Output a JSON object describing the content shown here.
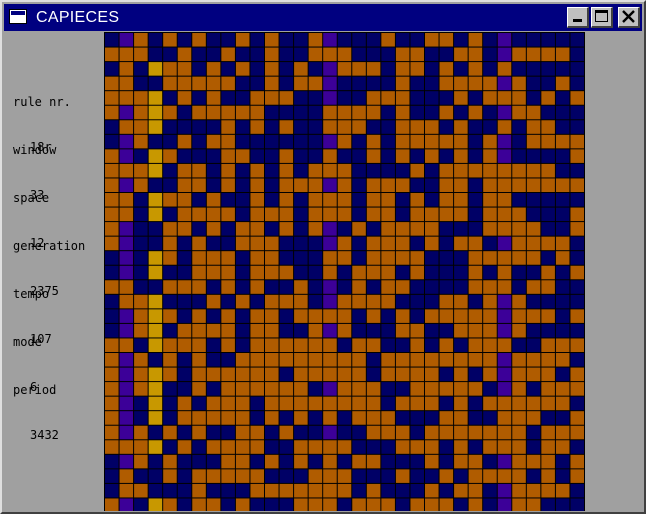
{
  "window": {
    "title": "CAPIECES",
    "controls": [
      "minimize",
      "maximize",
      "close"
    ]
  },
  "info": {
    "rule": {
      "label": "rule nr.",
      "value": "18r"
    },
    "window": {
      "label": "window",
      "value": "33"
    },
    "space": {
      "label": "space",
      "value": "12"
    },
    "generation": {
      "label": "generation",
      "value": "2375"
    },
    "tempo": {
      "label": "tempo",
      "value": "107"
    },
    "mode": {
      "label": "mode",
      "value": "6"
    },
    "period": {
      "label": "period",
      "value": "3432"
    }
  },
  "grid": {
    "columns": 33,
    "rows": 33,
    "colors": {
      "empty": "#000066",
      "cell_orange": "#b05c00",
      "cell_violet": "#3c0098",
      "cell_gold": "#c89800",
      "grid_line": "#000000"
    },
    "column_styles": [
      "e",
      "v",
      "e",
      "g",
      "e",
      "e",
      "e",
      "e",
      "e",
      "e",
      "e",
      "e",
      "e",
      "o",
      "e",
      "v",
      "e",
      "e",
      "e",
      "e",
      "e",
      "e",
      "e",
      "e",
      "e",
      "e",
      "e",
      "v",
      "e",
      "e",
      "e",
      "e",
      "o"
    ],
    "cells": [
      "001010100101001000010011010000000",
      "111001001001001110001100110011110",
      "010111010101010011101101010100000",
      "110011111001011000001001111010010",
      "111101010011100000111000101110101",
      "101110111110000111101001010011000",
      "011100001010100111001110100101100",
      "001001011000000010101111101001111",
      "100110001100100100101010101000001",
      "111101101010101110000101111111100",
      "101001101010111010111001101111111",
      "110111010010101110110101101100000",
      "110101111011101110110111101110001",
      "100011010110101001011110001111001",
      "100010100111000010111010110011110",
      "000110111011000110111100011111010",
      "000100111011100101110100010100101",
      "110011101010010001011000011101100",
      "011100010101110011110001101010000",
      "001110101011011110101011111011101",
      "001101111011001010001100111010000",
      "110111101011111101100101011100111",
      "101010100111111111011111111011110",
      "101110111111011111011110101011101",
      "101100101111110011100111110010111",
      "100101011101111111101110101111110",
      "100101111101010101110001100111001",
      "101010100110100000111011111110111",
      "111101011110011110001110101110110",
      "001010001101010101100010110011101",
      "010010111110001110001001011110101",
      "011000100011111110100010110011110",
      "100110110100011101110111010011000"
    ]
  }
}
